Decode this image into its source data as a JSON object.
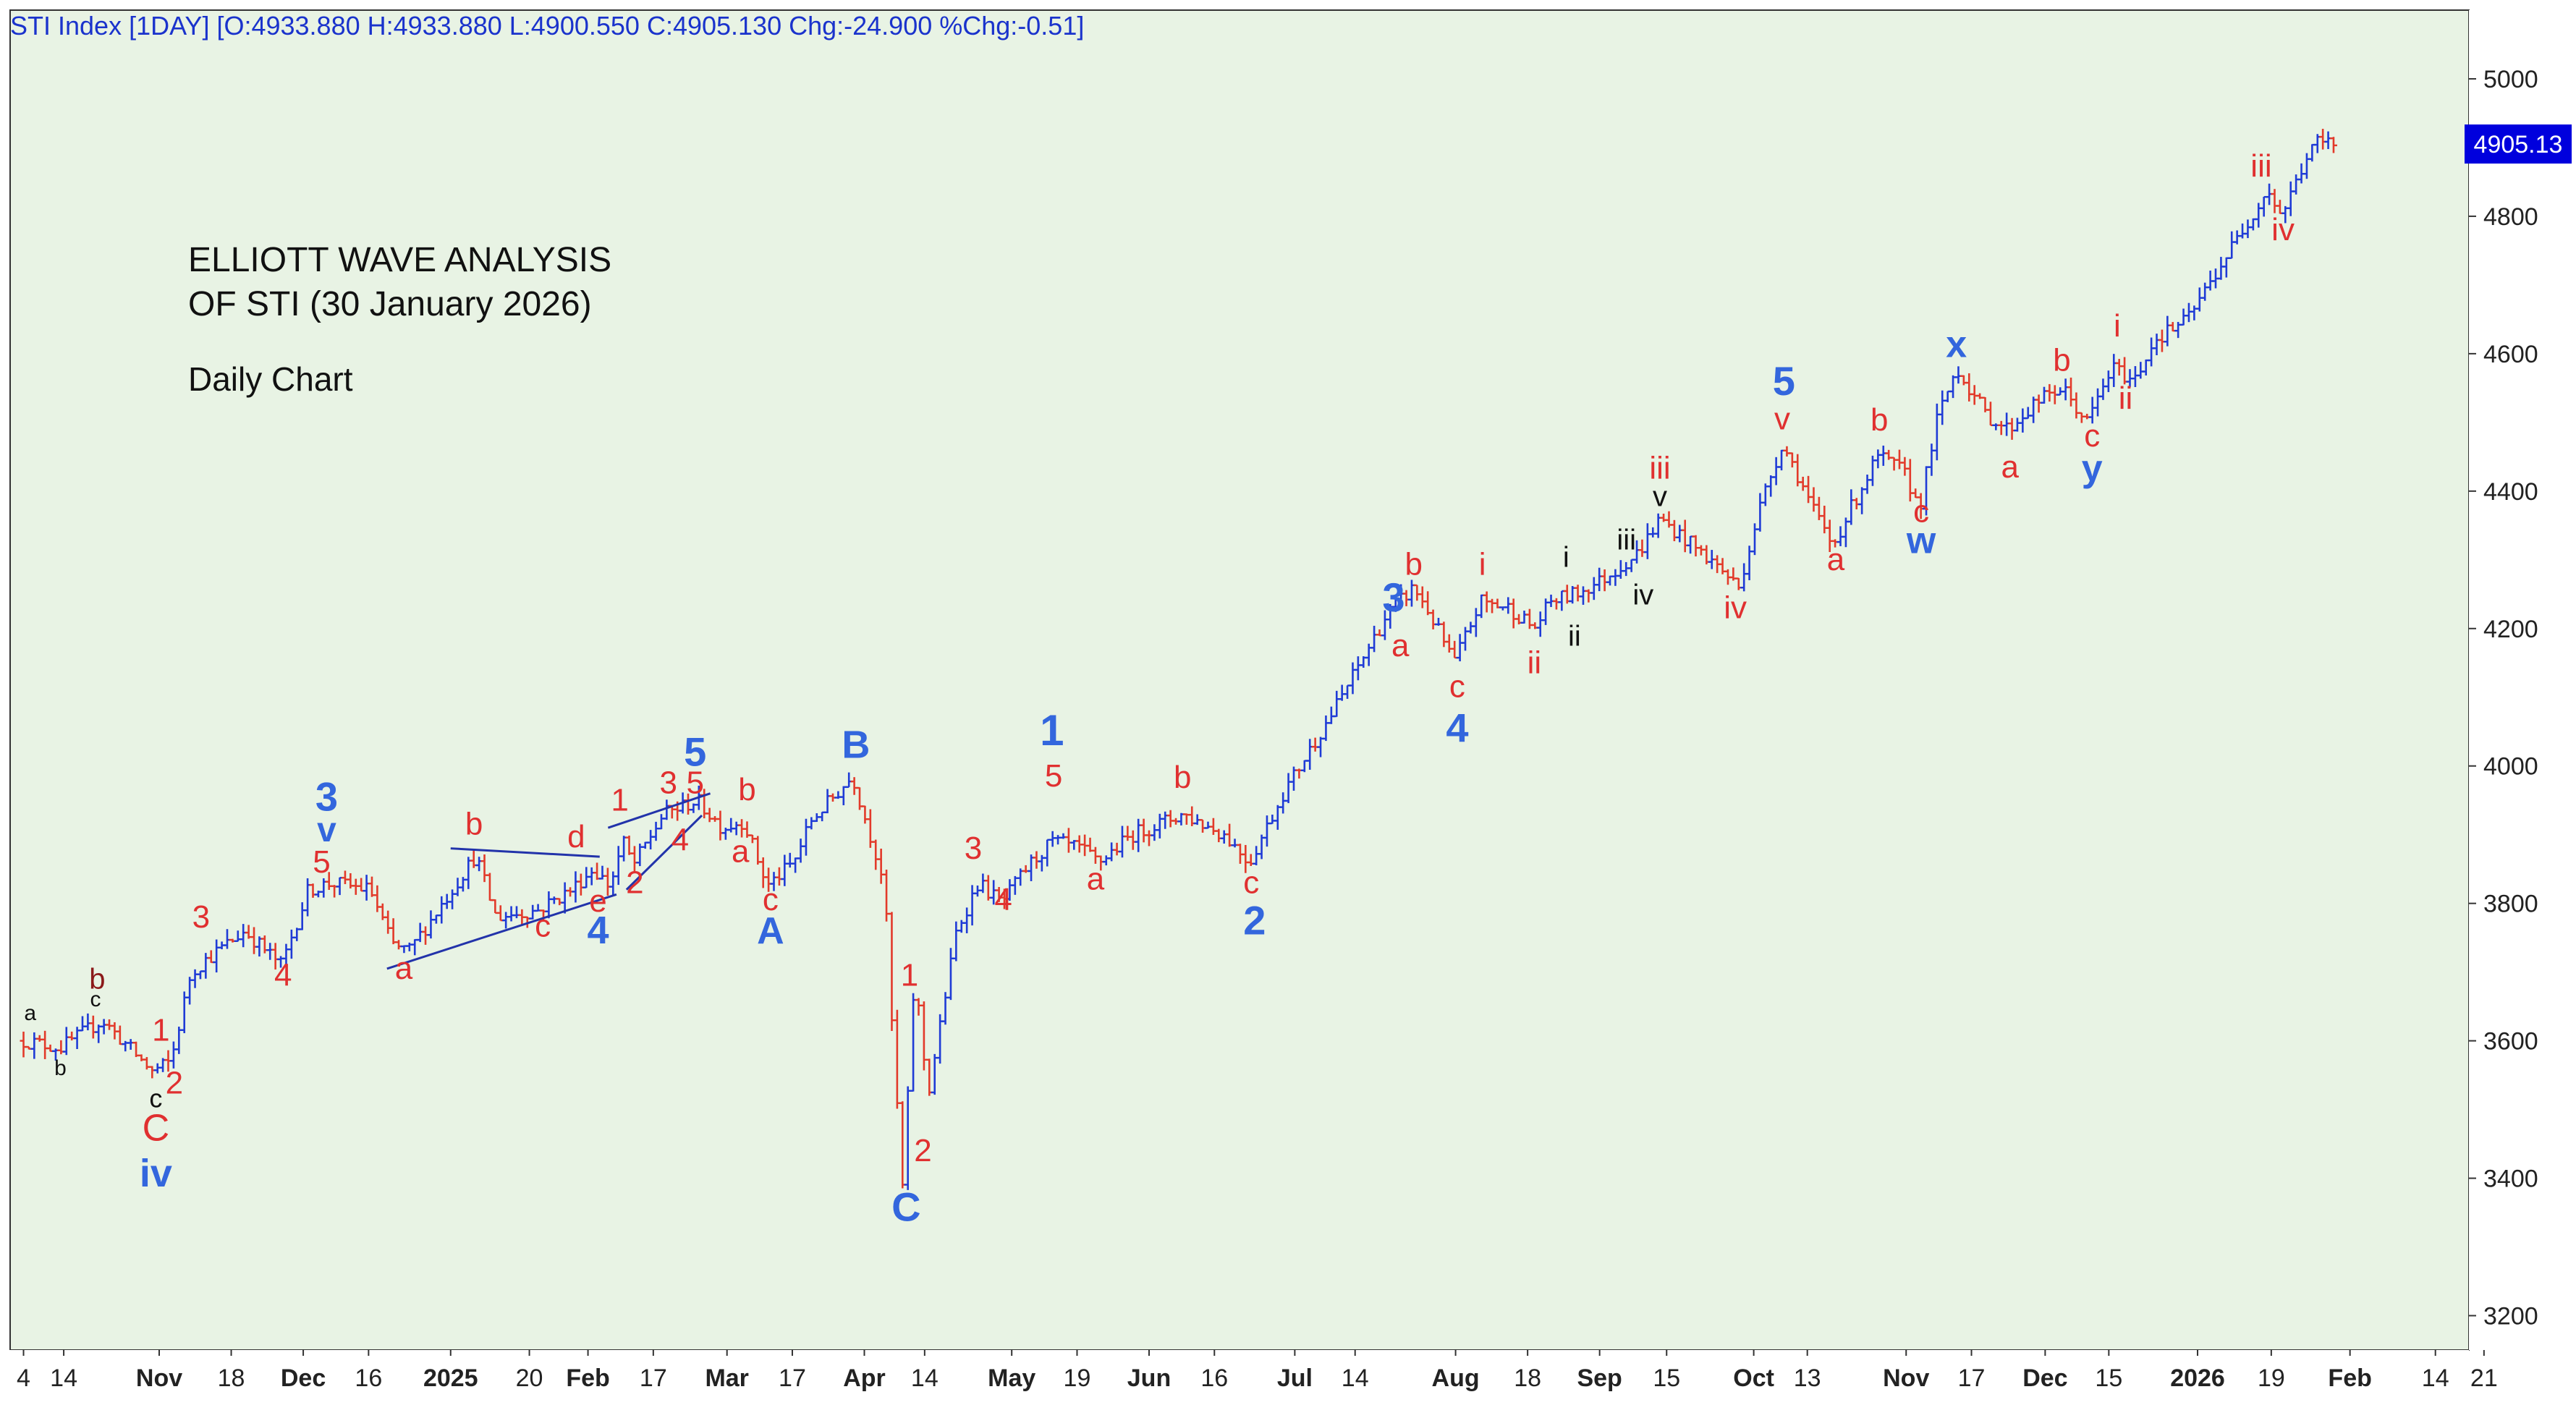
{
  "chart_data": {
    "type": "ohlc",
    "header": "STI Index [1DAY] [O:4933.880 H:4933.880 L:4900.550 C:4905.130 Chg:-24.900 %Chg:-0.51]",
    "title_lines": [
      "ELLIOTT WAVE ANALYSIS",
      "OF STI (30 January 2026)"
    ],
    "subtitle": "Daily Chart",
    "last_price_label": "4905.13",
    "last_price": 4905.13,
    "ylim": [
      3150,
      5100
    ],
    "xlim": [
      0,
      1468
    ],
    "y_ticks": [
      3200,
      3400,
      3600,
      3800,
      4000,
      4200,
      4400,
      4600,
      4800,
      5000
    ],
    "x_ticks": [
      {
        "x": 8,
        "label": "4",
        "bold": false
      },
      {
        "x": 32,
        "label": "14",
        "bold": false
      },
      {
        "x": 89,
        "label": "Nov",
        "bold": true
      },
      {
        "x": 132,
        "label": "18",
        "bold": false
      },
      {
        "x": 175,
        "label": "Dec",
        "bold": true
      },
      {
        "x": 214,
        "label": "16",
        "bold": false
      },
      {
        "x": 263,
        "label": "2025",
        "bold": true
      },
      {
        "x": 310,
        "label": "20",
        "bold": false
      },
      {
        "x": 345,
        "label": "Feb",
        "bold": true
      },
      {
        "x": 384,
        "label": "17",
        "bold": false
      },
      {
        "x": 428,
        "label": "Mar",
        "bold": true
      },
      {
        "x": 467,
        "label": "17",
        "bold": false
      },
      {
        "x": 510,
        "label": "Apr",
        "bold": true
      },
      {
        "x": 546,
        "label": "14",
        "bold": false
      },
      {
        "x": 598,
        "label": "May",
        "bold": true
      },
      {
        "x": 637,
        "label": "19",
        "bold": false
      },
      {
        "x": 680,
        "label": "Jun",
        "bold": true
      },
      {
        "x": 719,
        "label": "16",
        "bold": false
      },
      {
        "x": 767,
        "label": "Jul",
        "bold": true
      },
      {
        "x": 803,
        "label": "14",
        "bold": false
      },
      {
        "x": 863,
        "label": "Aug",
        "bold": true
      },
      {
        "x": 906,
        "label": "18",
        "bold": false
      },
      {
        "x": 949,
        "label": "Sep",
        "bold": true
      },
      {
        "x": 989,
        "label": "15",
        "bold": false
      },
      {
        "x": 1041,
        "label": "Oct",
        "bold": true
      },
      {
        "x": 1073,
        "label": "13",
        "bold": false
      },
      {
        "x": 1132,
        "label": "Nov",
        "bold": true
      },
      {
        "x": 1171,
        "label": "17",
        "bold": false
      },
      {
        "x": 1215,
        "label": "Dec",
        "bold": true
      },
      {
        "x": 1253,
        "label": "15",
        "bold": false
      },
      {
        "x": 1306,
        "label": "2026",
        "bold": true
      },
      {
        "x": 1350,
        "label": "19",
        "bold": false
      },
      {
        "x": 1397,
        "label": "Feb",
        "bold": true
      },
      {
        "x": 1448,
        "label": "14",
        "bold": false
      },
      {
        "x": 1477,
        "label": "21",
        "bold": false
      }
    ],
    "price_path": [
      [
        8,
        3600
      ],
      [
        30,
        3590
      ],
      [
        55,
        3630
      ],
      [
        85,
        3555
      ],
      [
        96,
        3570
      ],
      [
        108,
        3700
      ],
      [
        118,
        3720
      ],
      [
        140,
        3760
      ],
      [
        162,
        3710
      ],
      [
        178,
        3820
      ],
      [
        192,
        3830
      ],
      [
        215,
        3820
      ],
      [
        228,
        3740
      ],
      [
        238,
        3730
      ],
      [
        258,
        3800
      ],
      [
        278,
        3870
      ],
      [
        290,
        3780
      ],
      [
        315,
        3790
      ],
      [
        335,
        3820
      ],
      [
        348,
        3850
      ],
      [
        358,
        3825
      ],
      [
        366,
        3890
      ],
      [
        372,
        3855
      ],
      [
        390,
        3930
      ],
      [
        410,
        3950
      ],
      [
        425,
        3910
      ],
      [
        438,
        3920
      ],
      [
        452,
        3825
      ],
      [
        468,
        3860
      ],
      [
        478,
        3920
      ],
      [
        503,
        3985
      ],
      [
        522,
        3830
      ],
      [
        527,
        3600
      ],
      [
        533,
        3380
      ],
      [
        540,
        3700
      ],
      [
        548,
        3520
      ],
      [
        565,
        3760
      ],
      [
        578,
        3830
      ],
      [
        592,
        3800
      ],
      [
        608,
        3855
      ],
      [
        622,
        3890
      ],
      [
        638,
        3880
      ],
      [
        650,
        3860
      ],
      [
        670,
        3900
      ],
      [
        700,
        3930
      ],
      [
        725,
        3900
      ],
      [
        740,
        3860
      ],
      [
        760,
        3960
      ],
      [
        790,
        4080
      ],
      [
        822,
        4220
      ],
      [
        838,
        4260
      ],
      [
        848,
        4220
      ],
      [
        862,
        4150
      ],
      [
        878,
        4240
      ],
      [
        895,
        4230
      ],
      [
        910,
        4200
      ],
      [
        920,
        4240
      ],
      [
        934,
        4250
      ],
      [
        950,
        4270
      ],
      [
        972,
        4310
      ],
      [
        985,
        4360
      ],
      [
        1000,
        4330
      ],
      [
        1020,
        4290
      ],
      [
        1032,
        4260
      ],
      [
        1045,
        4380
      ],
      [
        1058,
        4470
      ],
      [
        1068,
        4420
      ],
      [
        1075,
        4380
      ],
      [
        1088,
        4320
      ],
      [
        1100,
        4380
      ],
      [
        1115,
        4450
      ],
      [
        1130,
        4430
      ],
      [
        1140,
        4375
      ],
      [
        1150,
        4500
      ],
      [
        1162,
        4580
      ],
      [
        1180,
        4510
      ],
      [
        1193,
        4490
      ],
      [
        1210,
        4530
      ],
      [
        1225,
        4550
      ],
      [
        1240,
        4500
      ],
      [
        1255,
        4580
      ],
      [
        1268,
        4560
      ],
      [
        1280,
        4620
      ],
      [
        1300,
        4650
      ],
      [
        1320,
        4730
      ],
      [
        1348,
        4840
      ],
      [
        1356,
        4800
      ],
      [
        1370,
        4880
      ],
      [
        1378,
        4910
      ],
      [
        1388,
        4905
      ]
    ],
    "annotations": [
      {
        "text": "a",
        "x": 12,
        "y": 3630,
        "color": "#111111",
        "size": 30,
        "bold": false
      },
      {
        "text": "b",
        "x": 30,
        "y": 3550,
        "color": "#111111",
        "size": 30,
        "bold": false
      },
      {
        "text": "b",
        "x": 52,
        "y": 3676,
        "color": "#8b1a1a",
        "size": 40,
        "bold": false
      },
      {
        "text": "c",
        "x": 51,
        "y": 3650,
        "color": "#111111",
        "size": 30,
        "bold": false
      },
      {
        "text": "1",
        "x": 90,
        "y": 3600,
        "color": "#e03030",
        "size": 44,
        "bold": false
      },
      {
        "text": "2",
        "x": 98,
        "y": 3523,
        "color": "#e03030",
        "size": 44,
        "bold": false
      },
      {
        "text": "c",
        "x": 87,
        "y": 3503,
        "color": "#111111",
        "size": 36,
        "bold": false
      },
      {
        "text": "C",
        "x": 87,
        "y": 3455,
        "color": "#e03030",
        "size": 52,
        "bold": false
      },
      {
        "text": "iv",
        "x": 87,
        "y": 3388,
        "color": "#3366dd",
        "size": 54,
        "bold": true
      },
      {
        "text": "3",
        "x": 114,
        "y": 3765,
        "color": "#e03030",
        "size": 44,
        "bold": false
      },
      {
        "text": "4",
        "x": 163,
        "y": 3680,
        "color": "#e03030",
        "size": 44,
        "bold": false
      },
      {
        "text": "3",
        "x": 189,
        "y": 3935,
        "color": "#3366dd",
        "size": 56,
        "bold": true
      },
      {
        "text": "v",
        "x": 189,
        "y": 3890,
        "color": "#3366dd",
        "size": 48,
        "bold": true
      },
      {
        "text": "5",
        "x": 186,
        "y": 3845,
        "color": "#e03030",
        "size": 44,
        "bold": false
      },
      {
        "text": "b",
        "x": 277,
        "y": 3900,
        "color": "#e03030",
        "size": 44,
        "bold": false
      },
      {
        "text": "a",
        "x": 235,
        "y": 3690,
        "color": "#e03030",
        "size": 44,
        "bold": false
      },
      {
        "text": "c",
        "x": 318,
        "y": 3752,
        "color": "#e03030",
        "size": 44,
        "bold": false
      },
      {
        "text": "d",
        "x": 338,
        "y": 3882,
        "color": "#e03030",
        "size": 44,
        "bold": false
      },
      {
        "text": "e",
        "x": 351,
        "y": 3788,
        "color": "#e03030",
        "size": 44,
        "bold": false
      },
      {
        "text": "4",
        "x": 351,
        "y": 3742,
        "color": "#3366dd",
        "size": 54,
        "bold": true
      },
      {
        "text": "1",
        "x": 364,
        "y": 3935,
        "color": "#e03030",
        "size": 44,
        "bold": false
      },
      {
        "text": "2",
        "x": 373,
        "y": 3815,
        "color": "#e03030",
        "size": 44,
        "bold": false
      },
      {
        "text": "3",
        "x": 393,
        "y": 3960,
        "color": "#e03030",
        "size": 44,
        "bold": false
      },
      {
        "text": "5",
        "x": 409,
        "y": 3960,
        "color": "#e03030",
        "size": 44,
        "bold": false
      },
      {
        "text": "5",
        "x": 409,
        "y": 4000,
        "color": "#3366dd",
        "size": 56,
        "bold": true
      },
      {
        "text": "4",
        "x": 400,
        "y": 3877,
        "color": "#e03030",
        "size": 44,
        "bold": false
      },
      {
        "text": "b",
        "x": 440,
        "y": 3950,
        "color": "#e03030",
        "size": 44,
        "bold": false
      },
      {
        "text": "a",
        "x": 436,
        "y": 3860,
        "color": "#e03030",
        "size": 44,
        "bold": false
      },
      {
        "text": "c",
        "x": 454,
        "y": 3790,
        "color": "#e03030",
        "size": 44,
        "bold": false
      },
      {
        "text": "A",
        "x": 454,
        "y": 3742,
        "color": "#3366dd",
        "size": 52,
        "bold": true
      },
      {
        "text": "B",
        "x": 505,
        "y": 4012,
        "color": "#3366dd",
        "size": 54,
        "bold": true
      },
      {
        "text": "1",
        "x": 537,
        "y": 3680,
        "color": "#e03030",
        "size": 44,
        "bold": false
      },
      {
        "text": "2",
        "x": 545,
        "y": 3425,
        "color": "#e03030",
        "size": 44,
        "bold": false
      },
      {
        "text": "C",
        "x": 535,
        "y": 3338,
        "color": "#3366dd",
        "size": 56,
        "bold": true
      },
      {
        "text": "3",
        "x": 575,
        "y": 3865,
        "color": "#e03030",
        "size": 44,
        "bold": false
      },
      {
        "text": "4",
        "x": 593,
        "y": 3790,
        "color": "#e03030",
        "size": 44,
        "bold": false
      },
      {
        "text": "1",
        "x": 622,
        "y": 4030,
        "color": "#3366dd",
        "size": 60,
        "bold": true
      },
      {
        "text": "5",
        "x": 623,
        "y": 3970,
        "color": "#e03030",
        "size": 44,
        "bold": false
      },
      {
        "text": "a",
        "x": 648,
        "y": 3820,
        "color": "#e03030",
        "size": 44,
        "bold": false
      },
      {
        "text": "b",
        "x": 700,
        "y": 3968,
        "color": "#e03030",
        "size": 44,
        "bold": false
      },
      {
        "text": "c",
        "x": 741,
        "y": 3815,
        "color": "#e03030",
        "size": 44,
        "bold": false
      },
      {
        "text": "2",
        "x": 743,
        "y": 3755,
        "color": "#3366dd",
        "size": 56,
        "bold": true
      },
      {
        "text": "3",
        "x": 826,
        "y": 4225,
        "color": "#3366dd",
        "size": 56,
        "bold": true
      },
      {
        "text": "b",
        "x": 838,
        "y": 4278,
        "color": "#e03030",
        "size": 44,
        "bold": false
      },
      {
        "text": "a",
        "x": 830,
        "y": 4160,
        "color": "#e03030",
        "size": 44,
        "bold": false
      },
      {
        "text": "c",
        "x": 864,
        "y": 4100,
        "color": "#e03030",
        "size": 44,
        "bold": false
      },
      {
        "text": "4",
        "x": 864,
        "y": 4035,
        "color": "#3366dd",
        "size": 56,
        "bold": true
      },
      {
        "text": "i",
        "x": 879,
        "y": 4278,
        "color": "#e03030",
        "size": 44,
        "bold": false
      },
      {
        "text": "ii",
        "x": 910,
        "y": 4135,
        "color": "#e03030",
        "size": 44,
        "bold": false
      },
      {
        "text": "i",
        "x": 929,
        "y": 4290,
        "color": "#111111",
        "size": 40,
        "bold": false
      },
      {
        "text": "ii",
        "x": 934,
        "y": 4175,
        "color": "#111111",
        "size": 40,
        "bold": false
      },
      {
        "text": "iii",
        "x": 965,
        "y": 4315,
        "color": "#111111",
        "size": 40,
        "bold": false
      },
      {
        "text": "iv",
        "x": 975,
        "y": 4235,
        "color": "#111111",
        "size": 40,
        "bold": false
      },
      {
        "text": "iii",
        "x": 985,
        "y": 4418,
        "color": "#e03030",
        "size": 44,
        "bold": false
      },
      {
        "text": "v",
        "x": 985,
        "y": 4378,
        "color": "#111111",
        "size": 40,
        "bold": false
      },
      {
        "text": "iv",
        "x": 1030,
        "y": 4215,
        "color": "#e03030",
        "size": 44,
        "bold": false
      },
      {
        "text": "5",
        "x": 1059,
        "y": 4540,
        "color": "#3366dd",
        "size": 56,
        "bold": true
      },
      {
        "text": "v",
        "x": 1058,
        "y": 4490,
        "color": "#e03030",
        "size": 44,
        "bold": false
      },
      {
        "text": "a",
        "x": 1090,
        "y": 4285,
        "color": "#e03030",
        "size": 44,
        "bold": false
      },
      {
        "text": "b",
        "x": 1116,
        "y": 4488,
        "color": "#e03030",
        "size": 44,
        "bold": false
      },
      {
        "text": "c",
        "x": 1141,
        "y": 4355,
        "color": "#e03030",
        "size": 44,
        "bold": false
      },
      {
        "text": "w",
        "x": 1141,
        "y": 4310,
        "color": "#3366dd",
        "size": 52,
        "bold": true
      },
      {
        "text": "x",
        "x": 1162,
        "y": 4595,
        "color": "#3366dd",
        "size": 52,
        "bold": true
      },
      {
        "text": "a",
        "x": 1194,
        "y": 4420,
        "color": "#e03030",
        "size": 44,
        "bold": false
      },
      {
        "text": "b",
        "x": 1225,
        "y": 4575,
        "color": "#e03030",
        "size": 44,
        "bold": false
      },
      {
        "text": "c",
        "x": 1243,
        "y": 4465,
        "color": "#e03030",
        "size": 44,
        "bold": false
      },
      {
        "text": "y",
        "x": 1243,
        "y": 4415,
        "color": "#3366dd",
        "size": 52,
        "bold": true
      },
      {
        "text": "i",
        "x": 1258,
        "y": 4625,
        "color": "#e03030",
        "size": 44,
        "bold": false
      },
      {
        "text": "ii",
        "x": 1263,
        "y": 4520,
        "color": "#e03030",
        "size": 44,
        "bold": false
      },
      {
        "text": "iii",
        "x": 1344,
        "y": 4858,
        "color": "#e03030",
        "size": 44,
        "bold": false
      },
      {
        "text": "iv",
        "x": 1357,
        "y": 4765,
        "color": "#e03030",
        "size": 44,
        "bold": false
      }
    ],
    "trendlines": [
      {
        "color": "#2233aa",
        "points": [
          [
            263,
            3880
          ],
          [
            352,
            3868
          ]
        ]
      },
      {
        "color": "#2233aa",
        "points": [
          [
            225,
            3705
          ],
          [
            362,
            3813
          ]
        ]
      },
      {
        "color": "#2233aa",
        "points": [
          [
            357,
            3910
          ],
          [
            418,
            3960
          ]
        ]
      },
      {
        "color": "#2233aa",
        "points": [
          [
            368,
            3820
          ],
          [
            413,
            3928
          ]
        ]
      }
    ]
  }
}
